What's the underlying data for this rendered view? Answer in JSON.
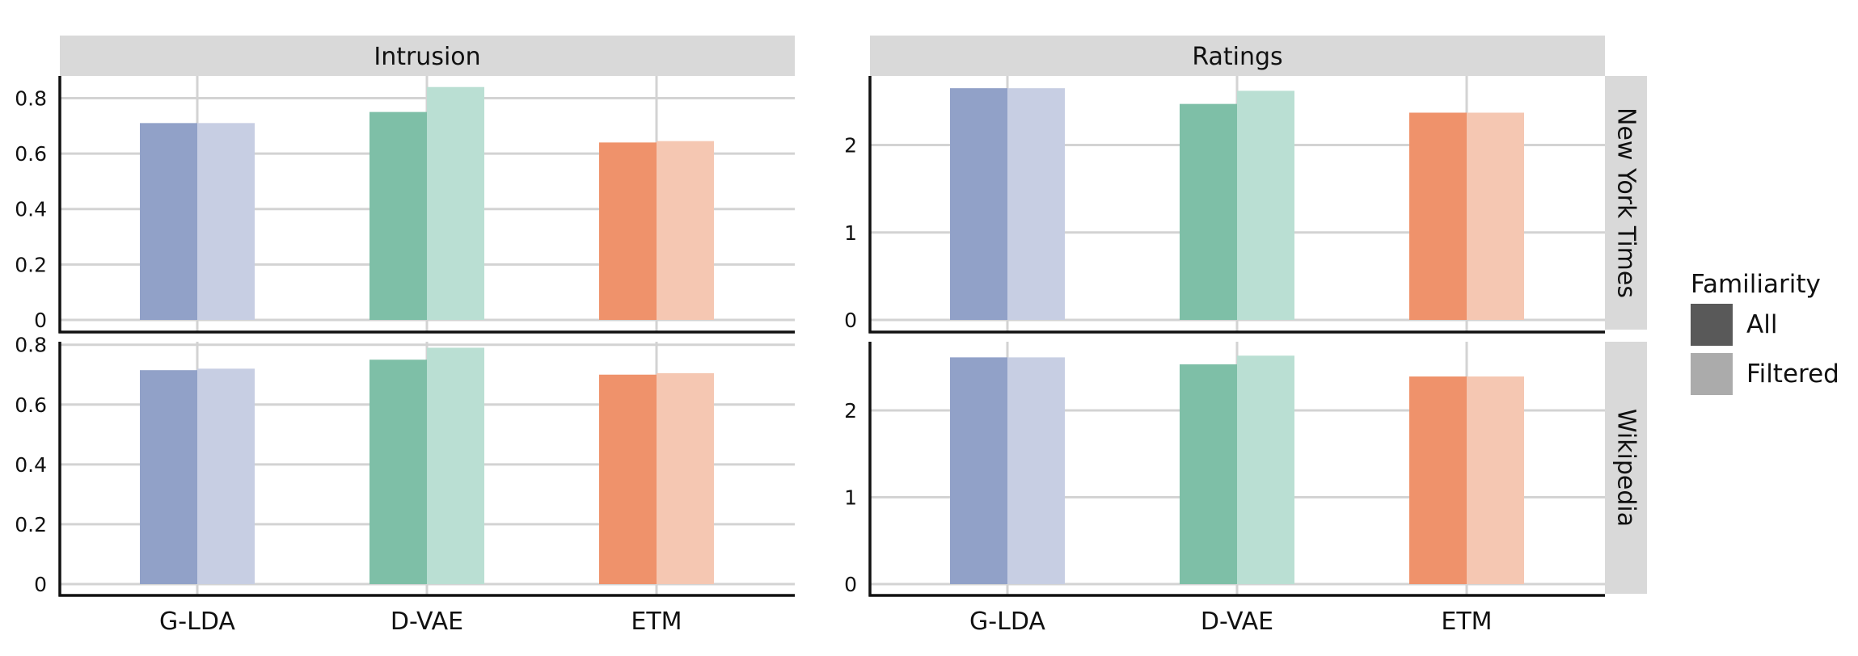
{
  "legend": {
    "title": "Familiarity",
    "items": [
      {
        "label": "All",
        "color": "#595959"
      },
      {
        "label": "Filtered",
        "color": "#ababab"
      }
    ]
  },
  "colors": {
    "G-LDA": {
      "All": "#91a1c8",
      "Filtered": "#c7cee3"
    },
    "D-VAE": {
      "All": "#7ebfa7",
      "Filtered": "#badfd3"
    },
    "ETM": {
      "All": "#ef926b",
      "Filtered": "#f5c7b2"
    }
  },
  "chart_data": [
    {
      "type": "bar",
      "column": "Intrusion",
      "row": "New York Times",
      "categories": [
        "G-LDA",
        "D-VAE",
        "ETM"
      ],
      "series": [
        {
          "name": "All",
          "values": [
            0.71,
            0.75,
            0.64
          ]
        },
        {
          "name": "Filtered",
          "values": [
            0.71,
            0.84,
            0.645
          ]
        }
      ],
      "ylim": [
        0,
        0.88
      ],
      "yticks": [
        0,
        0.2,
        0.4,
        0.6,
        0.8
      ],
      "ytick_labels": [
        "0",
        "0.2",
        "0.4",
        "0.6",
        "0.8"
      ]
    },
    {
      "type": "bar",
      "column": "Ratings",
      "row": "New York Times",
      "categories": [
        "G-LDA",
        "D-VAE",
        "ETM"
      ],
      "series": [
        {
          "name": "All",
          "values": [
            2.65,
            2.47,
            2.37
          ]
        },
        {
          "name": "Filtered",
          "values": [
            2.65,
            2.62,
            2.37
          ]
        }
      ],
      "ylim": [
        0,
        2.79
      ],
      "yticks": [
        0,
        1,
        2
      ],
      "ytick_labels": [
        "0",
        "1",
        "2"
      ]
    },
    {
      "type": "bar",
      "column": "Intrusion",
      "row": "Wikipedia",
      "categories": [
        "G-LDA",
        "D-VAE",
        "ETM"
      ],
      "series": [
        {
          "name": "All",
          "values": [
            0.715,
            0.75,
            0.7
          ]
        },
        {
          "name": "Filtered",
          "values": [
            0.72,
            0.79,
            0.705
          ]
        }
      ],
      "ylim": [
        0,
        0.81
      ],
      "yticks": [
        0,
        0.2,
        0.4,
        0.6,
        0.8
      ],
      "ytick_labels": [
        "0",
        "0.2",
        "0.4",
        "0.6",
        "0.8"
      ]
    },
    {
      "type": "bar",
      "column": "Ratings",
      "row": "Wikipedia",
      "categories": [
        "G-LDA",
        "D-VAE",
        "ETM"
      ],
      "series": [
        {
          "name": "All",
          "values": [
            2.61,
            2.53,
            2.39
          ]
        },
        {
          "name": "Filtered",
          "values": [
            2.61,
            2.63,
            2.39
          ]
        }
      ],
      "ylim": [
        0,
        2.79
      ],
      "yticks": [
        0,
        1,
        2
      ],
      "ytick_labels": [
        "0",
        "1",
        "2"
      ]
    }
  ]
}
